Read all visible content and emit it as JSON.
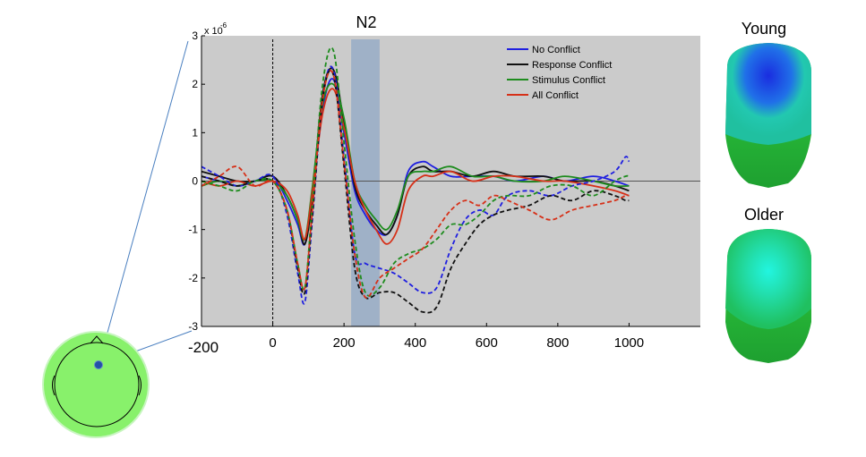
{
  "figure": {
    "component_label": "N2",
    "young_label": "Young",
    "older_label": "Older"
  },
  "chart_data": {
    "type": "line",
    "title": "",
    "xlabel": "",
    "ylabel": "",
    "y_exponent": "x 10",
    "y_exponent_power": "-6",
    "xlim": [
      -200,
      1200
    ],
    "ylim": [
      -3,
      3
    ],
    "x_ticks": [
      -200,
      0,
      200,
      400,
      600,
      800,
      1000
    ],
    "x_tick_labels": [
      "-200",
      "0",
      "200",
      "400",
      "600",
      "800",
      "1000"
    ],
    "y_ticks": [
      3,
      2,
      1,
      0,
      -1,
      -2,
      -3
    ],
    "y_tick_labels": [
      "3",
      "2",
      "1",
      "0",
      "-1",
      "-2",
      "-3"
    ],
    "grid": false,
    "legend_position": "top-right",
    "stimulus_onset_x": 0,
    "highlight_window": [
      220,
      300
    ],
    "colors": {
      "plot_background": "#cbcbcb",
      "highlight": "#9aaec6",
      "No Conflict": "#1f1fe0",
      "Response Conflict": "#111111",
      "Stimulus Conflict": "#1e8c1e",
      "All Conflict": "#d63018"
    },
    "series": [
      {
        "name": "No Conflict",
        "group": "solid",
        "color": "#1f1fe0",
        "x": [
          -200,
          -150,
          -100,
          -50,
          0,
          40,
          70,
          90,
          110,
          140,
          170,
          200,
          230,
          260,
          290,
          320,
          350,
          380,
          420,
          450,
          500,
          560,
          620,
          680,
          760,
          820,
          900,
          960,
          1000
        ],
        "y": [
          0.1,
          0.0,
          -0.1,
          0.0,
          0.1,
          -0.4,
          -0.9,
          -1.3,
          -0.3,
          1.5,
          2.1,
          1.0,
          -0.2,
          -0.7,
          -1.0,
          -1.1,
          -0.7,
          0.2,
          0.4,
          0.3,
          0.1,
          0.1,
          0.1,
          0.0,
          0.1,
          0.0,
          0.1,
          0.0,
          -0.1
        ]
      },
      {
        "name": "Response Conflict",
        "group": "solid",
        "color": "#111111",
        "x": [
          -200,
          -150,
          -100,
          -50,
          0,
          40,
          70,
          90,
          110,
          140,
          170,
          200,
          230,
          260,
          290,
          320,
          350,
          380,
          420,
          450,
          500,
          560,
          620,
          680,
          760,
          820,
          900,
          960,
          1000
        ],
        "y": [
          0.2,
          0.1,
          0.0,
          0.0,
          0.1,
          -0.3,
          -0.8,
          -1.3,
          -0.4,
          1.8,
          2.3,
          1.2,
          -0.1,
          -0.6,
          -0.9,
          -1.1,
          -0.7,
          0.1,
          0.3,
          0.2,
          0.2,
          0.1,
          0.2,
          0.1,
          0.1,
          0.0,
          0.0,
          -0.1,
          -0.2
        ]
      },
      {
        "name": "Stimulus Conflict",
        "group": "solid",
        "color": "#1e8c1e",
        "x": [
          -200,
          -150,
          -100,
          -50,
          0,
          40,
          70,
          90,
          110,
          140,
          170,
          200,
          230,
          260,
          290,
          320,
          350,
          380,
          420,
          450,
          500,
          560,
          620,
          680,
          760,
          820,
          900,
          960,
          1000
        ],
        "y": [
          -0.1,
          0.0,
          -0.1,
          0.0,
          0.0,
          -0.3,
          -0.8,
          -1.2,
          -0.2,
          1.6,
          2.0,
          1.3,
          0.0,
          -0.5,
          -0.8,
          -1.0,
          -0.6,
          0.1,
          0.2,
          0.2,
          0.3,
          0.1,
          0.1,
          0.0,
          0.0,
          0.1,
          0.0,
          -0.1,
          -0.1
        ]
      },
      {
        "name": "All Conflict",
        "group": "solid",
        "color": "#d63018",
        "x": [
          -200,
          -150,
          -100,
          -50,
          0,
          40,
          70,
          90,
          110,
          140,
          170,
          200,
          230,
          260,
          290,
          320,
          350,
          380,
          420,
          450,
          500,
          560,
          620,
          680,
          760,
          820,
          900,
          960,
          1000
        ],
        "y": [
          0.0,
          -0.1,
          0.0,
          -0.1,
          0.0,
          -0.2,
          -0.7,
          -1.2,
          -0.3,
          1.4,
          1.9,
          1.1,
          0.0,
          -0.6,
          -1.0,
          -1.3,
          -1.0,
          -0.2,
          0.1,
          0.1,
          0.2,
          0.0,
          0.1,
          0.1,
          0.0,
          0.0,
          -0.1,
          -0.2,
          -0.3
        ]
      },
      {
        "name": "No Conflict",
        "group": "dashed",
        "color": "#1f1fe0",
        "x": [
          -200,
          -150,
          -100,
          -50,
          0,
          40,
          70,
          90,
          110,
          140,
          170,
          200,
          230,
          260,
          300,
          340,
          380,
          420,
          460,
          500,
          540,
          580,
          620,
          660,
          720,
          780,
          840,
          900,
          960,
          990,
          1000
        ],
        "y": [
          0.3,
          0.1,
          -0.1,
          0.0,
          0.1,
          -0.7,
          -1.9,
          -2.5,
          -0.9,
          1.7,
          2.3,
          0.5,
          -1.5,
          -1.7,
          -1.8,
          -1.9,
          -2.1,
          -2.3,
          -2.2,
          -1.4,
          -0.8,
          -0.6,
          -0.7,
          -0.3,
          -0.2,
          -0.3,
          -0.1,
          0.0,
          0.2,
          0.5,
          0.4
        ]
      },
      {
        "name": "Response Conflict",
        "group": "dashed",
        "color": "#111111",
        "x": [
          -200,
          -150,
          -100,
          -50,
          0,
          40,
          70,
          90,
          110,
          140,
          170,
          200,
          230,
          260,
          300,
          340,
          380,
          420,
          460,
          500,
          540,
          580,
          620,
          660,
          720,
          780,
          840,
          900,
          960,
          990,
          1000
        ],
        "y": [
          0.1,
          0.0,
          -0.1,
          0.0,
          0.0,
          -0.6,
          -1.8,
          -2.3,
          -0.8,
          1.7,
          2.2,
          0.3,
          -1.8,
          -2.4,
          -2.3,
          -2.3,
          -2.5,
          -2.7,
          -2.6,
          -1.8,
          -1.3,
          -0.9,
          -0.7,
          -0.6,
          -0.5,
          -0.3,
          -0.4,
          -0.2,
          -0.3,
          -0.4,
          -0.4
        ]
      },
      {
        "name": "Stimulus Conflict",
        "group": "dashed",
        "color": "#1e8c1e",
        "x": [
          -200,
          -150,
          -100,
          -50,
          0,
          40,
          70,
          90,
          110,
          140,
          170,
          200,
          230,
          260,
          300,
          340,
          380,
          420,
          460,
          500,
          540,
          580,
          620,
          660,
          720,
          780,
          840,
          900,
          960,
          990,
          1000
        ],
        "y": [
          0.0,
          -0.1,
          -0.2,
          0.0,
          0.0,
          -0.6,
          -1.7,
          -2.2,
          -0.6,
          2.0,
          2.7,
          0.8,
          -1.2,
          -2.3,
          -2.2,
          -1.7,
          -1.5,
          -1.4,
          -1.2,
          -0.9,
          -0.9,
          -0.7,
          -0.4,
          -0.3,
          -0.3,
          -0.1,
          -0.1,
          -0.3,
          0.0,
          0.1,
          0.1
        ]
      },
      {
        "name": "All Conflict",
        "group": "dashed",
        "color": "#d63018",
        "x": [
          -200,
          -150,
          -100,
          -50,
          0,
          40,
          70,
          90,
          110,
          140,
          170,
          200,
          230,
          260,
          300,
          340,
          380,
          420,
          460,
          500,
          540,
          580,
          620,
          660,
          720,
          780,
          840,
          900,
          960,
          990,
          1000
        ],
        "y": [
          -0.1,
          0.1,
          0.3,
          -0.1,
          0.0,
          -0.6,
          -1.7,
          -2.2,
          -0.7,
          1.7,
          2.2,
          0.4,
          -1.5,
          -2.4,
          -2.0,
          -1.8,
          -1.6,
          -1.4,
          -1.0,
          -0.6,
          -0.4,
          -0.5,
          -0.3,
          -0.4,
          -0.6,
          -0.8,
          -0.6,
          -0.5,
          -0.4,
          -0.3,
          -0.3
        ]
      }
    ],
    "legend": [
      "No Conflict",
      "Response Conflict",
      "Stimulus Conflict",
      "All Conflict"
    ]
  }
}
